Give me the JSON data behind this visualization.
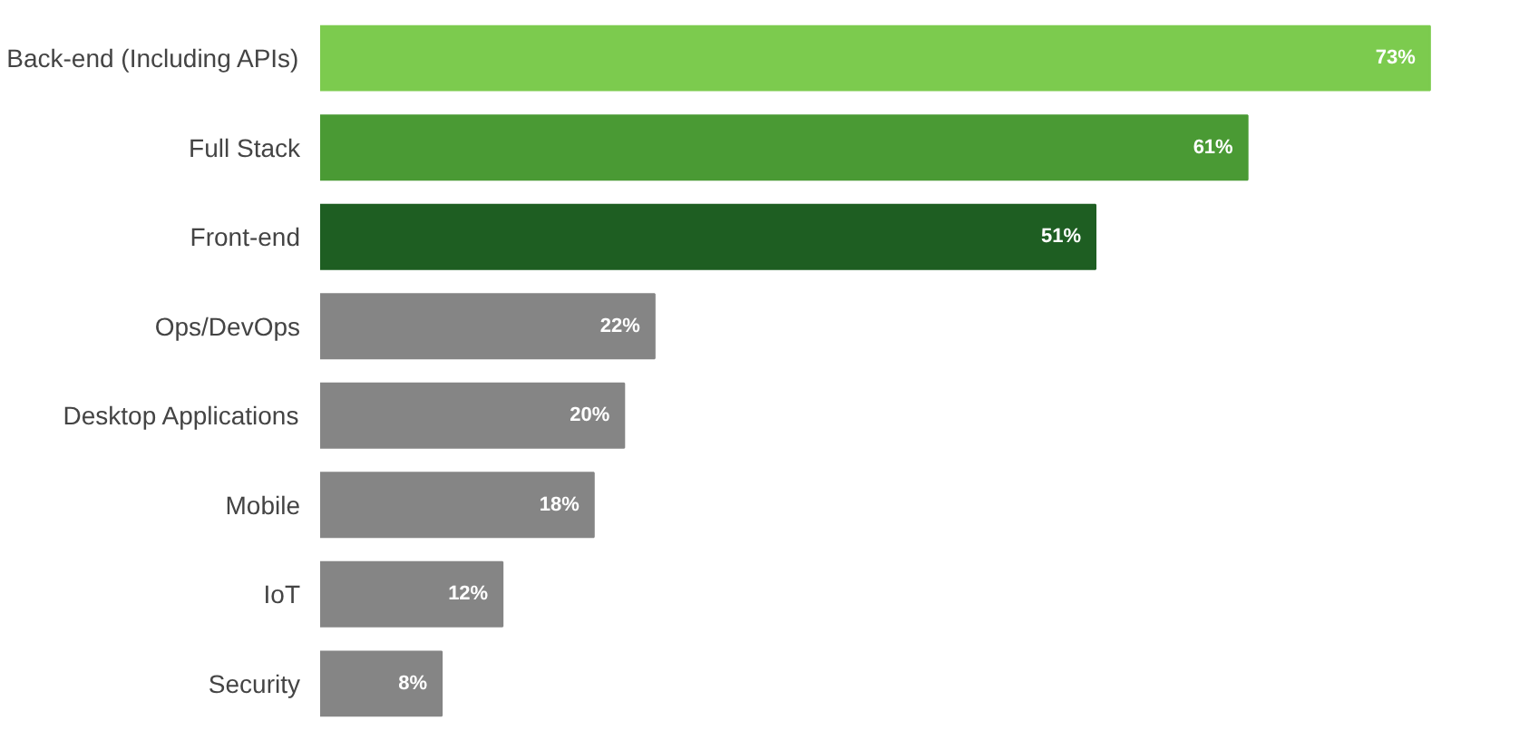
{
  "chart_data": {
    "type": "bar",
    "orientation": "horizontal",
    "categories": [
      "Back-end (Including APIs)",
      "Full Stack",
      "Front-end",
      "Ops/DevOps",
      "Desktop Applications",
      "Mobile",
      "IoT",
      "Security"
    ],
    "values": [
      73,
      61,
      51,
      22,
      20,
      18,
      12,
      8
    ],
    "colors": [
      "#7ccb4e",
      "#4a9a34",
      "#1e5e22",
      "#858585",
      "#858585",
      "#858585",
      "#858585",
      "#858585"
    ],
    "value_labels": [
      "73%",
      "61%",
      "51%",
      "22%",
      "20%",
      "18%",
      "12%",
      "8%"
    ],
    "tick_labels": "y",
    "grid": false
  }
}
